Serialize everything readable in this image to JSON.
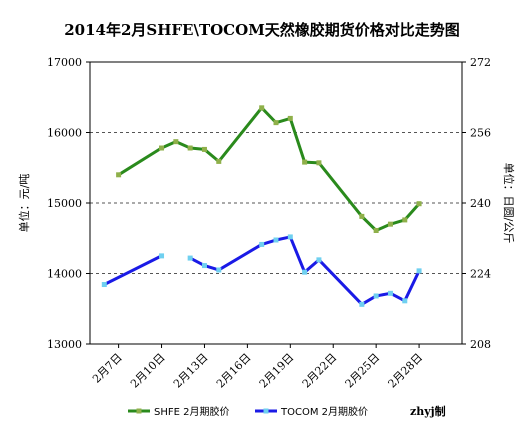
{
  "chart_data": {
    "type": "line",
    "title": "2014年2月SHFE\\TOCOM天然橡胶期货价格对比走势图",
    "ylabel_left": "单位：元/吨",
    "ylabel_right": "单位：日圆/公斤",
    "credit": "zhyj制",
    "left_axis": {
      "min": 13000,
      "max": 17000,
      "ticks": [
        "13000",
        "14000",
        "15000",
        "16000",
        "17000"
      ]
    },
    "right_axis": {
      "min": 208,
      "max": 272,
      "ticks": [
        "208",
        "224",
        "240",
        "256",
        "272"
      ]
    },
    "x_tick_labels": [
      "2月7日",
      "2月10日",
      "2月13日",
      "2月16日",
      "2月19日",
      "2月22日",
      "2月25日",
      "2月28日"
    ],
    "grid": "horizontal dashed",
    "legend_position": "bottom",
    "series": [
      {
        "name": "SHFE 2月期胶价",
        "axis": "left",
        "color": "#2a8a1c",
        "marker_color": "#8fb04a",
        "points": [
          [
            "2014-02-07",
            15400
          ],
          [
            "2014-02-10",
            15780
          ],
          [
            "2014-02-11",
            15870
          ],
          [
            "2014-02-12",
            15780
          ],
          [
            "2014-02-13",
            15760
          ],
          [
            "2014-02-14",
            15590
          ],
          [
            "2014-02-17",
            16350
          ],
          [
            "2014-02-18",
            16140
          ],
          [
            "2014-02-19",
            16200
          ],
          [
            "2014-02-20",
            15580
          ],
          [
            "2014-02-21",
            15570
          ],
          [
            "2014-02-24",
            14810
          ],
          [
            "2014-02-25",
            14610
          ],
          [
            "2014-02-26",
            14700
          ],
          [
            "2014-02-27",
            14760
          ],
          [
            "2014-02-28",
            14990
          ]
        ]
      },
      {
        "name": "TOCOM 2月期胶价",
        "axis": "right",
        "color": "#1a1ae6",
        "marker_color": "#6fd0f0",
        "segments": [
          [
            [
              "2014-02-06",
              221.5
            ],
            [
              "2014-02-10",
              228.0
            ]
          ],
          [
            [
              "2014-02-12",
              227.5
            ],
            [
              "2014-02-13",
              225.8
            ],
            [
              "2014-02-14",
              224.8
            ],
            [
              "2014-02-17",
              230.6
            ],
            [
              "2014-02-18",
              231.6
            ],
            [
              "2014-02-19",
              232.3
            ],
            [
              "2014-02-20",
              224.3
            ],
            [
              "2014-02-21",
              227.1
            ],
            [
              "2014-02-24",
              217.0
            ],
            [
              "2014-02-25",
              218.9
            ],
            [
              "2014-02-26",
              219.5
            ],
            [
              "2014-02-27",
              217.8
            ],
            [
              "2014-02-28",
              224.6
            ]
          ]
        ]
      }
    ]
  }
}
